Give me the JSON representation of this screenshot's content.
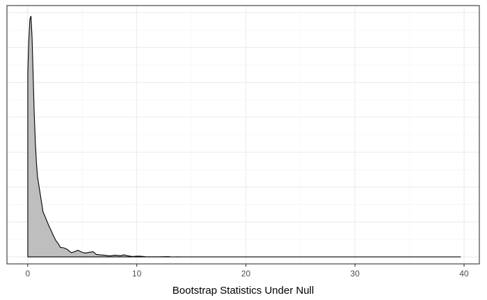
{
  "chart_data": {
    "type": "area",
    "title": "",
    "xlabel": "Bootstrap Statistics Under Null",
    "ylabel": "",
    "xlim": [
      -1.9,
      41.4
    ],
    "ylim": [
      -0.02,
      0.72
    ],
    "x_ticks": [
      0,
      10,
      20,
      30,
      40
    ],
    "x_tick_labels": [
      "0",
      "10",
      "20",
      "30",
      "40"
    ],
    "y_ticks": [
      0,
      0.1,
      0.2,
      0.3,
      0.4,
      0.5,
      0.6,
      0.7
    ],
    "y_tick_labels": [
      "",
      "",
      "",
      "",
      "",
      "",
      "",
      ""
    ],
    "grid": true,
    "legend": "none",
    "fill_color": "#bebebe",
    "line_color": "#000000",
    "density_x_range": [
      0.01,
      39.7
    ],
    "series": [
      {
        "x": [
          0.01,
          0.1,
          0.2,
          0.3,
          0.4,
          0.5,
          0.6,
          0.7,
          0.8,
          0.9,
          1.0,
          1.2,
          1.4,
          1.6,
          1.8,
          2.0,
          2.2,
          2.4,
          2.6,
          2.8,
          3.0,
          3.3,
          3.6,
          4.0,
          4.3,
          4.6,
          5.0,
          5.3,
          5.6,
          6.0,
          6.3,
          6.6,
          7.0,
          7.5,
          8.0,
          8.5,
          8.8,
          9.2,
          9.6,
          10.0,
          10.3,
          10.8,
          12.0,
          12.9,
          13.1,
          14.0,
          20.0,
          30.0,
          39.7
        ],
        "y": [
          0.53,
          0.62,
          0.68,
          0.69,
          0.63,
          0.52,
          0.41,
          0.33,
          0.27,
          0.23,
          0.21,
          0.17,
          0.13,
          0.115,
          0.1,
          0.085,
          0.072,
          0.058,
          0.046,
          0.038,
          0.027,
          0.026,
          0.022,
          0.012,
          0.015,
          0.019,
          0.013,
          0.011,
          0.013,
          0.015,
          0.007,
          0.006,
          0.005,
          0.003,
          0.005,
          0.0035,
          0.006,
          0.003,
          0.001,
          0.002,
          0.002,
          0.0005,
          0.0002,
          0.0008,
          0.0003,
          0.0001,
          0.0,
          0.0,
          0.0
        ]
      }
    ]
  }
}
